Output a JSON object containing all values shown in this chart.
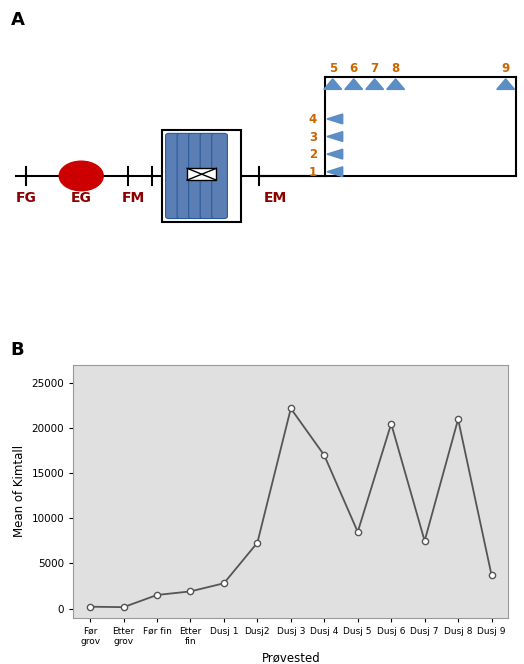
{
  "panel_A_label": "A",
  "panel_B_label": "B",
  "fig_bg": "#ffffff",
  "diagram": {
    "line_color": "#000000",
    "red_circle_color": "#cc0000",
    "blue_bar_color": "#5b7fb5",
    "triangle_color": "#5b8ec4",
    "label_color_dark": "#8B0000",
    "label_color_orange": "#cc6600",
    "side_numbers": [
      "1",
      "2",
      "3",
      "4"
    ],
    "top_numbers": [
      "5",
      "6",
      "7",
      "8",
      "9"
    ]
  },
  "chart": {
    "categories": [
      "Før\ngrov",
      "Etter\ngrov",
      "Før fin",
      "Etter\nfin",
      "Dusj 1",
      "Dusj2",
      "Dusj 3",
      "Dusj 4",
      "Dusj 5",
      "Dusj 6",
      "Dusj 7",
      "Dusj 8",
      "Dusj 9"
    ],
    "values": [
      200,
      150,
      1500,
      1900,
      2800,
      7300,
      22200,
      17000,
      8500,
      20500,
      7500,
      21000,
      3700
    ],
    "ylabel": "Mean of Kimtall",
    "xlabel": "Prøvested",
    "line_color": "#555555",
    "marker_color": "#ffffff",
    "marker_edge_color": "#555555",
    "bg_color": "#e0e0e0",
    "ylim": [
      -1000,
      27000
    ],
    "yticks": [
      0,
      5000,
      10000,
      15000,
      20000,
      25000
    ]
  }
}
